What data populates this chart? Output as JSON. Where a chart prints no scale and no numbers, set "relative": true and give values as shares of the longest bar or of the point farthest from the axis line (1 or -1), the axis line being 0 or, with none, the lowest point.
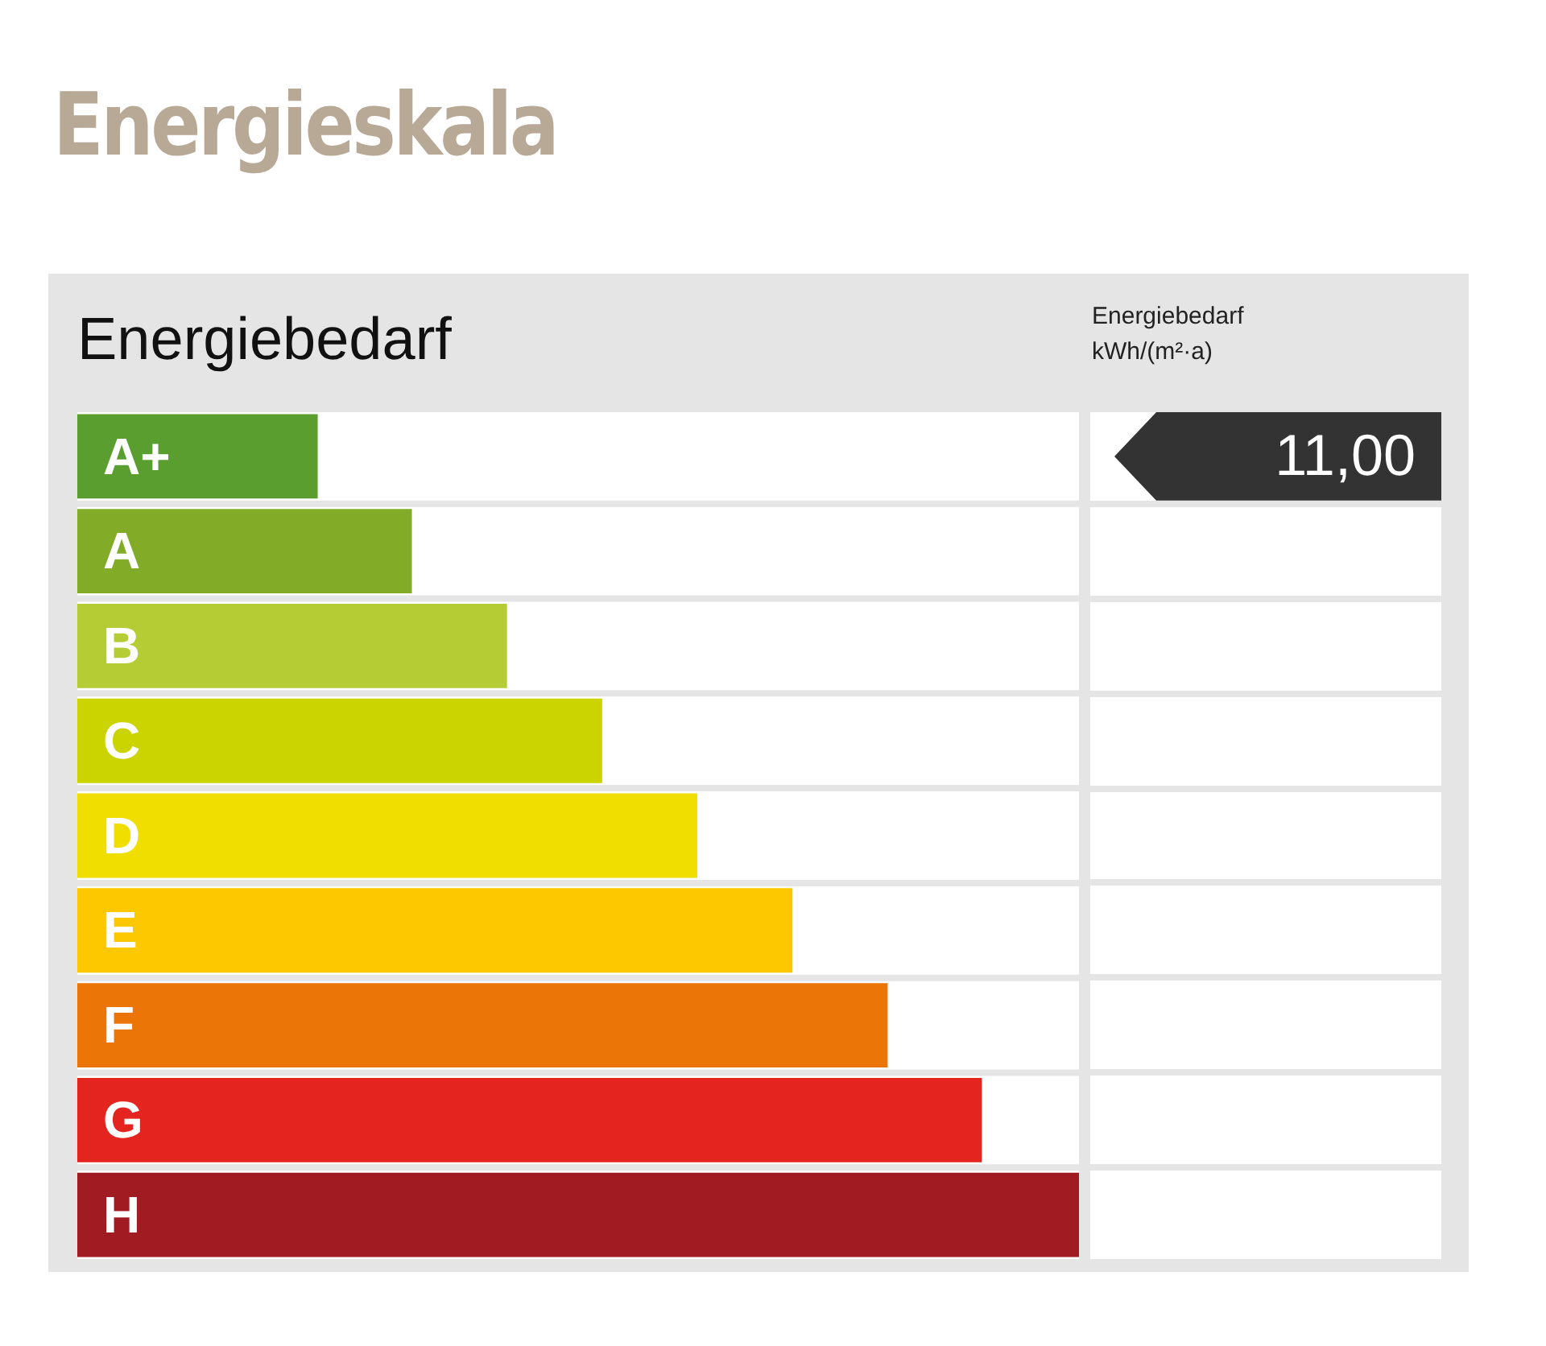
{
  "chart_data": {
    "type": "bar",
    "orientation": "horizontal",
    "relative": true,
    "title": "Energieskala",
    "subtitle": "Energiebedarf",
    "categories": [
      "A+",
      "A",
      "B",
      "C",
      "D",
      "E",
      "F",
      "G",
      "H"
    ],
    "values": [
      0.24,
      0.334,
      0.429,
      0.524,
      0.619,
      0.714,
      0.809,
      0.903,
      1
    ],
    "colors": [
      "#5a9e2f",
      "#82ac27",
      "#b5cc34",
      "#cbd300",
      "#f0de00",
      "#fec800",
      "#ec7508",
      "#e3241f",
      "#a01b22"
    ],
    "annotations": [
      "Energiebedarf\nkWh/(m²·a)",
      "11,00"
    ]
  }
}
